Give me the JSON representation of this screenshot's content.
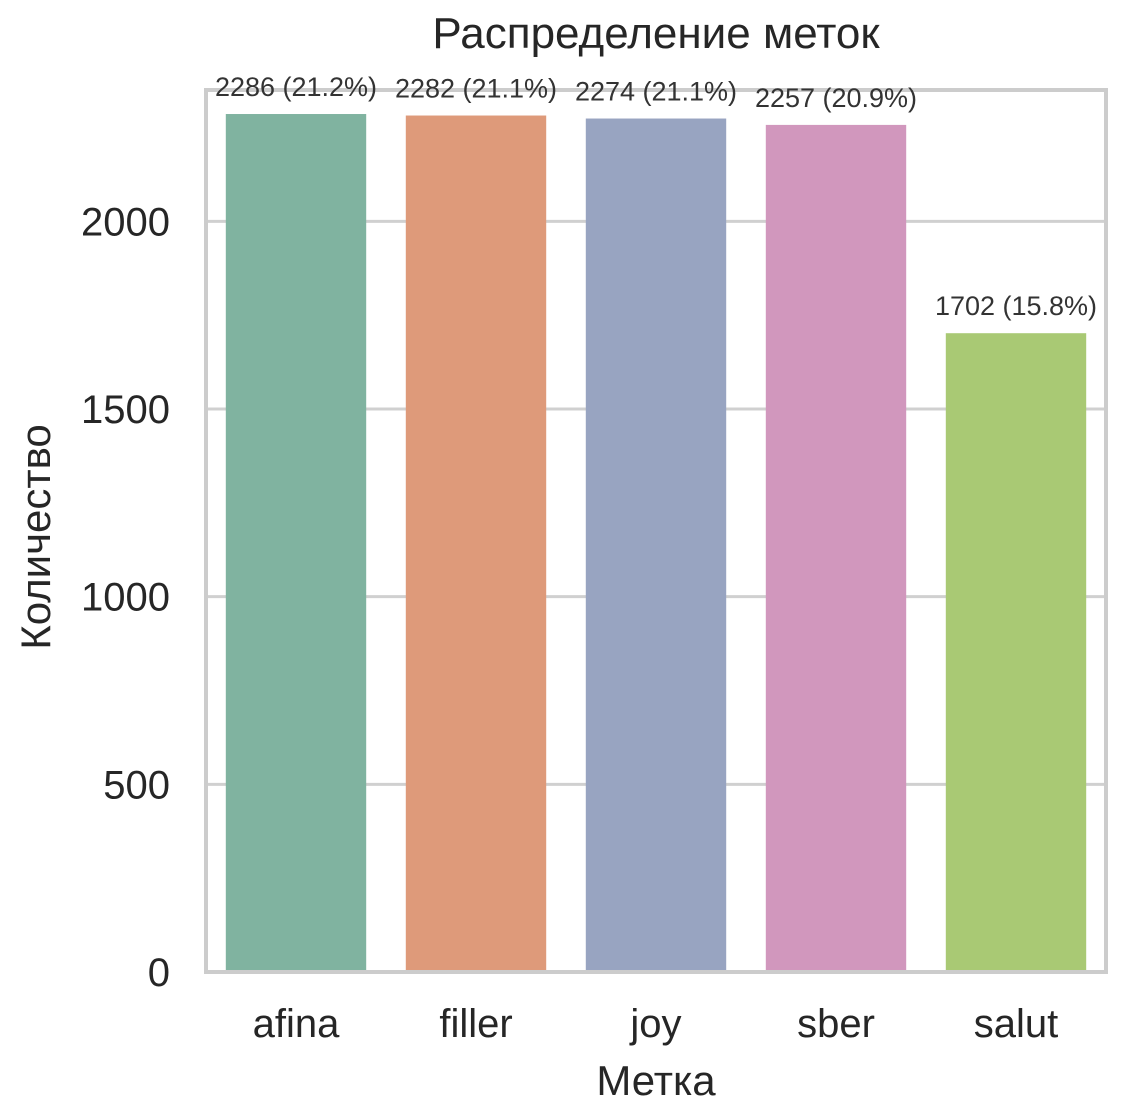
{
  "chart_data": {
    "type": "bar",
    "title": "Распределение меток",
    "xlabel": "Метка",
    "ylabel": "Количество",
    "categories": [
      "afina",
      "filler",
      "joy",
      "sber",
      "salut"
    ],
    "values": [
      2286,
      2282,
      2274,
      2257,
      1702
    ],
    "data_labels": [
      "2286 (21.2%)",
      "2282 (21.1%)",
      "2274 (21.1%)",
      "2257 (20.9%)",
      "1702 (15.8%)"
    ],
    "colors": [
      "#80b3a0",
      "#de9a7a",
      "#98a4c1",
      "#d197bd",
      "#a9c974"
    ],
    "ylim": [
      0,
      2350
    ],
    "yticks": [
      0,
      500,
      1000,
      1500,
      2000
    ],
    "ytick_labels": [
      "0",
      "500",
      "1000",
      "1500",
      "2000"
    ],
    "grid": true,
    "grid_axis": "y"
  }
}
